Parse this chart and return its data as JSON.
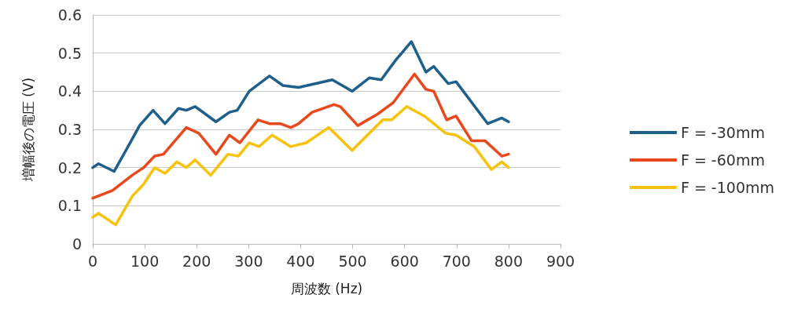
{
  "chart_data": {
    "type": "line",
    "xlabel": "周波数 (Hz)",
    "ylabel": "増幅後の電圧 (V)",
    "xlim": [
      0,
      900
    ],
    "xticks": [
      0,
      100,
      200,
      300,
      400,
      500,
      600,
      700,
      800,
      900
    ],
    "ylim": [
      0,
      0.6
    ],
    "yticks": [
      0,
      0.1,
      0.2,
      0.3,
      0.4,
      0.5,
      0.6
    ],
    "grid": "y",
    "legend": "right",
    "marker": "none",
    "line_style": "solid",
    "series": [
      {
        "name": "F = -30mm",
        "color": "#1f5f8b",
        "x": [
          0,
          11,
          41,
          70,
          90,
          116,
          139,
          165,
          180,
          197,
          237,
          263,
          278,
          301,
          340,
          366,
          396,
          461,
          499,
          532,
          555,
          582,
          613,
          641,
          656,
          684,
          699,
          760,
          787,
          800
        ],
        "values": [
          0.2,
          0.21,
          0.19,
          0.26,
          0.31,
          0.35,
          0.315,
          0.355,
          0.35,
          0.36,
          0.32,
          0.345,
          0.35,
          0.4,
          0.44,
          0.415,
          0.41,
          0.43,
          0.4,
          0.435,
          0.43,
          0.48,
          0.53,
          0.45,
          0.465,
          0.42,
          0.425,
          0.315,
          0.33,
          0.32
        ]
      },
      {
        "name": "F = -60mm",
        "color": "#e8481c",
        "x": [
          0,
          38,
          76,
          98,
          119,
          136,
          180,
          204,
          237,
          263,
          283,
          318,
          340,
          361,
          381,
          396,
          422,
          464,
          476,
          510,
          548,
          578,
          619,
          641,
          656,
          681,
          699,
          729,
          755,
          787,
          800
        ],
        "values": [
          0.12,
          0.14,
          0.18,
          0.2,
          0.23,
          0.235,
          0.305,
          0.29,
          0.235,
          0.285,
          0.265,
          0.325,
          0.315,
          0.315,
          0.305,
          0.315,
          0.345,
          0.365,
          0.36,
          0.31,
          0.34,
          0.37,
          0.445,
          0.405,
          0.4,
          0.325,
          0.335,
          0.27,
          0.27,
          0.23,
          0.235
        ]
      },
      {
        "name": "F = -100mm",
        "color": "#f7c20c",
        "x": [
          0,
          11,
          44,
          76,
          97,
          119,
          139,
          162,
          180,
          197,
          227,
          260,
          280,
          301,
          320,
          345,
          381,
          411,
          454,
          499,
          558,
          575,
          604,
          638,
          679,
          699,
          734,
          767,
          787,
          800
        ],
        "values": [
          0.07,
          0.08,
          0.05,
          0.125,
          0.155,
          0.2,
          0.185,
          0.215,
          0.2,
          0.22,
          0.18,
          0.235,
          0.23,
          0.265,
          0.255,
          0.285,
          0.255,
          0.265,
          0.305,
          0.245,
          0.325,
          0.325,
          0.36,
          0.335,
          0.29,
          0.285,
          0.255,
          0.195,
          0.215,
          0.2
        ]
      }
    ]
  }
}
